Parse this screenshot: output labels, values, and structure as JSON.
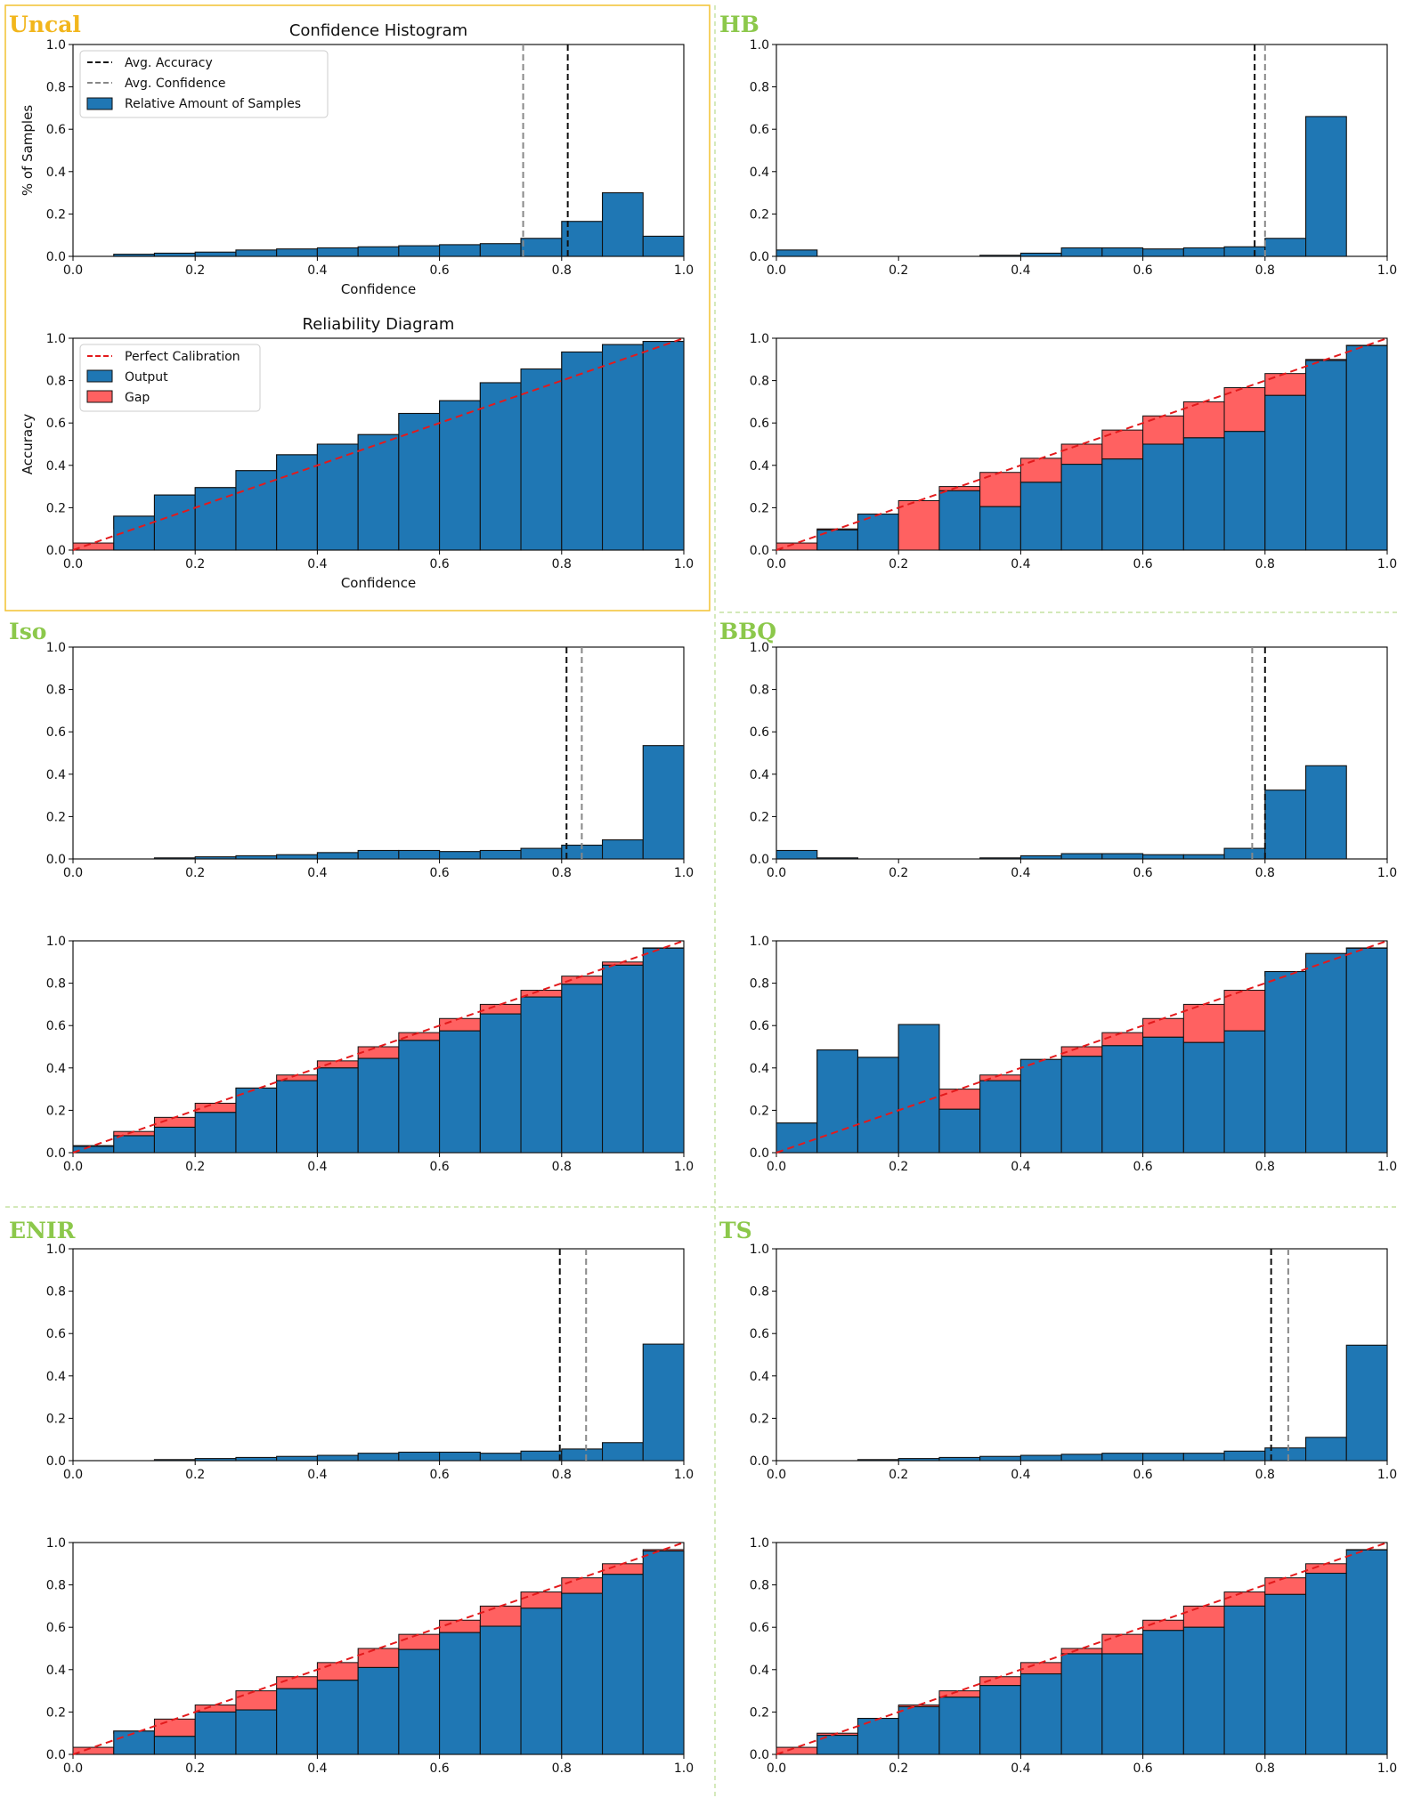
{
  "colors": {
    "bar": "#1f77b4",
    "gap_over": "#a32a45",
    "gap_under": "#ff6161",
    "perfect_line": "#e31a1c",
    "avg_accuracy_line": "#111111",
    "avg_confidence_line": "#888888",
    "uncal_label": "#f2b61c",
    "method_label": "#8cc84b",
    "uncal_frame": "#f2c230",
    "divider": "#b9dc8f"
  },
  "axis_ticks": {
    "x": [
      "0.0",
      "0.2",
      "0.4",
      "0.6",
      "0.8",
      "1.0"
    ],
    "y": [
      "0.0",
      "0.2",
      "0.4",
      "0.6",
      "0.8",
      "1.0"
    ]
  },
  "uncal_text": {
    "histogram_title": "Confidence Histogram",
    "reliability_title": "Reliability Diagram",
    "histogram_xlabel": "Confidence",
    "histogram_ylabel": "% of Samples",
    "reliability_xlabel": "Confidence",
    "reliability_ylabel": "Accuracy",
    "legend_histogram": [
      "Avg. Accuracy",
      "Avg. Confidence",
      "Relative Amount of Samples"
    ],
    "legend_reliability": [
      "Perfect Calibration",
      "Output",
      "Gap"
    ]
  },
  "chart_data": [
    {
      "type": "bar",
      "method": "Uncal",
      "bin_edges": [
        0.0,
        0.0667,
        0.1333,
        0.2,
        0.2667,
        0.3333,
        0.4,
        0.4667,
        0.5333,
        0.6,
        0.6667,
        0.7333,
        0.8,
        0.8667,
        0.9333,
        1.0
      ],
      "histogram": {
        "title": "Confidence Histogram",
        "xlabel": "Confidence",
        "ylabel": "% of Samples",
        "xlim": [
          0,
          1
        ],
        "ylim": [
          0,
          1
        ],
        "values": [
          0.0,
          0.01,
          0.015,
          0.02,
          0.03,
          0.035,
          0.04,
          0.045,
          0.05,
          0.055,
          0.06,
          0.085,
          0.165,
          0.3,
          0.095
        ],
        "avg_accuracy": 0.81,
        "avg_confidence": 0.737
      },
      "reliability": {
        "title": "Reliability Diagram",
        "xlabel": "Confidence",
        "ylabel": "Accuracy",
        "xlim": [
          0,
          1
        ],
        "ylim": [
          0,
          1
        ],
        "accuracy": [
          0.0,
          0.16,
          0.26,
          0.295,
          0.375,
          0.45,
          0.5,
          0.545,
          0.645,
          0.705,
          0.79,
          0.855,
          0.935,
          0.97,
          0.985
        ]
      }
    },
    {
      "type": "bar",
      "method": "HB",
      "bin_edges": [
        0.0,
        0.0667,
        0.1333,
        0.2,
        0.2667,
        0.3333,
        0.4,
        0.4667,
        0.5333,
        0.6,
        0.6667,
        0.7333,
        0.8,
        0.8667,
        0.9333,
        1.0
      ],
      "histogram": {
        "xlim": [
          0,
          1
        ],
        "ylim": [
          0,
          1
        ],
        "values": [
          0.03,
          0.0,
          0.0,
          0.0,
          0.0,
          0.005,
          0.015,
          0.04,
          0.04,
          0.035,
          0.04,
          0.045,
          0.085,
          0.66,
          0.0
        ],
        "avg_accuracy": 0.783,
        "avg_confidence": 0.8
      },
      "reliability": {
        "xlim": [
          0,
          1
        ],
        "ylim": [
          0,
          1
        ],
        "accuracy": [
          0.0,
          0.095,
          0.17,
          0.0,
          0.28,
          0.205,
          0.32,
          0.405,
          0.43,
          0.5,
          0.53,
          0.56,
          0.73,
          0.895,
          0.965
        ]
      }
    },
    {
      "type": "bar",
      "method": "Iso",
      "bin_edges": [
        0.0,
        0.0667,
        0.1333,
        0.2,
        0.2667,
        0.3333,
        0.4,
        0.4667,
        0.5333,
        0.6,
        0.6667,
        0.7333,
        0.8,
        0.8667,
        0.9333,
        1.0
      ],
      "histogram": {
        "xlim": [
          0,
          1
        ],
        "ylim": [
          0,
          1
        ],
        "values": [
          0.0,
          0.0,
          0.005,
          0.01,
          0.015,
          0.02,
          0.03,
          0.04,
          0.04,
          0.035,
          0.04,
          0.05,
          0.065,
          0.09,
          0.535
        ],
        "avg_accuracy": 0.808,
        "avg_confidence": 0.833
      },
      "reliability": {
        "xlim": [
          0,
          1
        ],
        "ylim": [
          0,
          1
        ],
        "accuracy": [
          0.03,
          0.08,
          0.12,
          0.19,
          0.305,
          0.34,
          0.4,
          0.445,
          0.53,
          0.575,
          0.655,
          0.735,
          0.795,
          0.885,
          0.965
        ]
      }
    },
    {
      "type": "bar",
      "method": "BBQ",
      "bin_edges": [
        0.0,
        0.0667,
        0.1333,
        0.2,
        0.2667,
        0.3333,
        0.4,
        0.4667,
        0.5333,
        0.6,
        0.6667,
        0.7333,
        0.8,
        0.8667,
        0.9333,
        1.0
      ],
      "histogram": {
        "xlim": [
          0,
          1
        ],
        "ylim": [
          0,
          1
        ],
        "values": [
          0.04,
          0.005,
          0.0,
          0.0,
          0.0,
          0.005,
          0.015,
          0.025,
          0.025,
          0.02,
          0.02,
          0.05,
          0.325,
          0.44,
          0.0
        ],
        "avg_accuracy": 0.8,
        "avg_confidence": 0.779
      },
      "reliability": {
        "xlim": [
          0,
          1
        ],
        "ylim": [
          0,
          1
        ],
        "accuracy": [
          0.14,
          0.485,
          0.45,
          0.605,
          0.205,
          0.34,
          0.44,
          0.455,
          0.505,
          0.545,
          0.52,
          0.575,
          0.855,
          0.94,
          0.965
        ]
      }
    },
    {
      "type": "bar",
      "method": "ENIR",
      "bin_edges": [
        0.0,
        0.0667,
        0.1333,
        0.2,
        0.2667,
        0.3333,
        0.4,
        0.4667,
        0.5333,
        0.6,
        0.6667,
        0.7333,
        0.8,
        0.8667,
        0.9333,
        1.0
      ],
      "histogram": {
        "xlim": [
          0,
          1
        ],
        "ylim": [
          0,
          1
        ],
        "values": [
          0.0,
          0.0,
          0.005,
          0.01,
          0.015,
          0.02,
          0.025,
          0.035,
          0.04,
          0.04,
          0.035,
          0.045,
          0.055,
          0.085,
          0.55
        ],
        "avg_accuracy": 0.797,
        "avg_confidence": 0.84
      },
      "reliability": {
        "xlim": [
          0,
          1
        ],
        "ylim": [
          0,
          1
        ],
        "accuracy": [
          0.0,
          0.11,
          0.085,
          0.2,
          0.21,
          0.31,
          0.35,
          0.41,
          0.495,
          0.575,
          0.605,
          0.69,
          0.76,
          0.85,
          0.96
        ]
      }
    },
    {
      "type": "bar",
      "method": "TS",
      "bin_edges": [
        0.0,
        0.0667,
        0.1333,
        0.2,
        0.2667,
        0.3333,
        0.4,
        0.4667,
        0.5333,
        0.6,
        0.6667,
        0.7333,
        0.8,
        0.8667,
        0.9333,
        1.0
      ],
      "histogram": {
        "xlim": [
          0,
          1
        ],
        "ylim": [
          0,
          1
        ],
        "values": [
          0.0,
          0.0,
          0.005,
          0.01,
          0.015,
          0.02,
          0.025,
          0.03,
          0.035,
          0.035,
          0.035,
          0.045,
          0.06,
          0.11,
          0.545
        ],
        "avg_accuracy": 0.81,
        "avg_confidence": 0.838
      },
      "reliability": {
        "xlim": [
          0,
          1
        ],
        "ylim": [
          0,
          1
        ],
        "accuracy": [
          0.0,
          0.09,
          0.17,
          0.225,
          0.27,
          0.325,
          0.38,
          0.475,
          0.475,
          0.585,
          0.6,
          0.7,
          0.755,
          0.855,
          0.965
        ]
      }
    }
  ]
}
